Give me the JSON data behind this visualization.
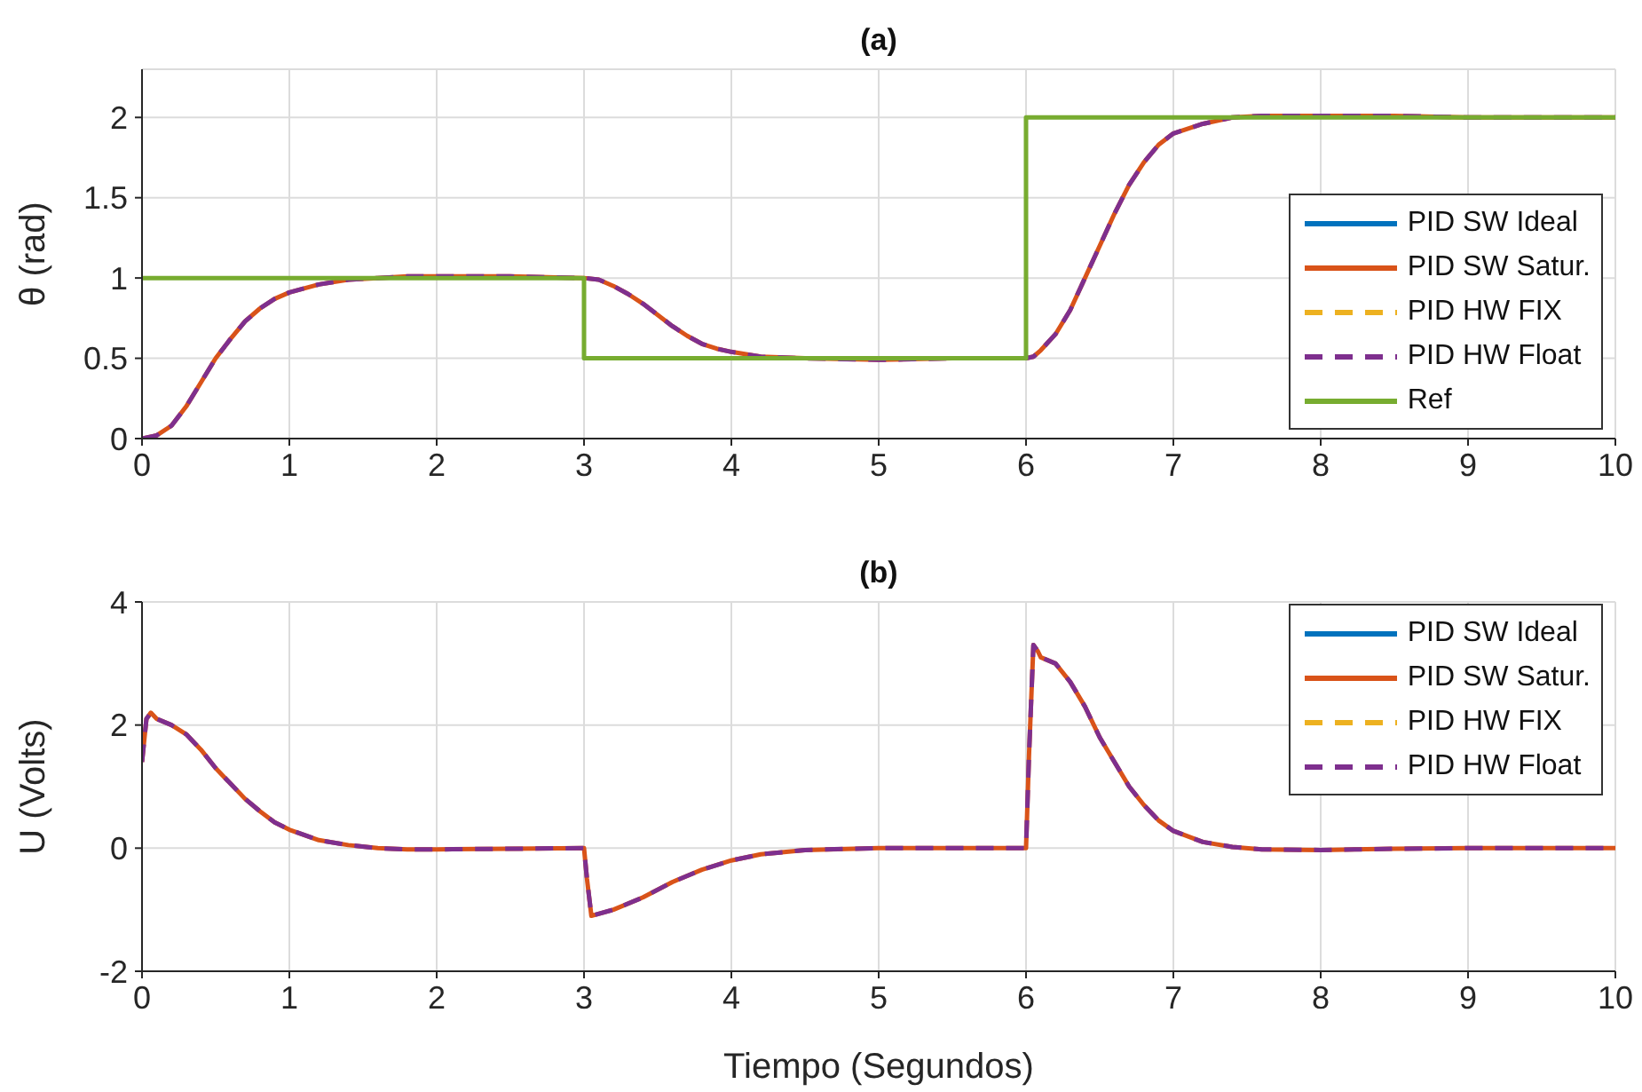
{
  "chart_data": [
    {
      "type": "line",
      "title": "(a)",
      "ylabel": "θ (rad)",
      "xlim": [
        0,
        10
      ],
      "xticks": [
        0,
        1,
        2,
        3,
        4,
        5,
        6,
        7,
        8,
        9,
        10
      ],
      "ylim": [
        0,
        2.3
      ],
      "yticks": [
        0,
        0.5,
        1,
        1.5,
        2
      ],
      "grid": true,
      "legend": "bottom right",
      "tick_labels": true,
      "x": [
        0,
        0.1,
        0.2,
        0.3,
        0.4,
        0.5,
        0.6,
        0.7,
        0.8,
        0.9,
        1.0,
        1.2,
        1.4,
        1.6,
        1.8,
        2.0,
        2.5,
        3.0,
        3.1,
        3.2,
        3.3,
        3.4,
        3.5,
        3.6,
        3.7,
        3.8,
        3.9,
        4.0,
        4.2,
        4.5,
        5.0,
        5.5,
        6.0,
        6.05,
        6.1,
        6.2,
        6.3,
        6.4,
        6.5,
        6.6,
        6.7,
        6.8,
        6.9,
        7.0,
        7.2,
        7.4,
        7.6,
        8.0,
        8.5,
        9.0,
        10.0
      ],
      "series": [
        {
          "name": "PID SW Ideal",
          "color": "#0072bd",
          "line_style": "solid",
          "values": [
            null,
            null,
            null,
            null,
            null,
            null,
            null,
            null,
            null,
            null,
            null,
            null,
            null,
            null,
            null,
            null,
            null,
            null,
            null,
            null,
            null,
            null,
            null,
            null,
            null,
            null,
            null,
            null,
            null,
            null,
            null,
            null,
            null,
            null,
            null,
            null,
            null,
            null,
            null,
            null,
            null,
            null,
            null,
            null,
            null,
            null,
            null,
            null,
            null,
            null,
            null
          ]
        },
        {
          "name": "PID SW Satur.",
          "color": "#d95319",
          "line_style": "solid",
          "values": [
            0,
            0.02,
            0.08,
            0.2,
            0.35,
            0.5,
            0.62,
            0.73,
            0.81,
            0.87,
            0.91,
            0.96,
            0.99,
            1.0,
            1.01,
            1.01,
            1.01,
            1.0,
            0.99,
            0.95,
            0.9,
            0.84,
            0.77,
            0.7,
            0.64,
            0.59,
            0.56,
            0.54,
            0.51,
            0.5,
            0.49,
            0.5,
            0.5,
            0.51,
            0.55,
            0.65,
            0.8,
            1.0,
            1.2,
            1.4,
            1.58,
            1.72,
            1.83,
            1.9,
            1.96,
            2.0,
            2.01,
            2.01,
            2.01,
            2.0,
            2.0
          ]
        },
        {
          "name": "PID HW FIX",
          "color": "#edb120",
          "line_style": "dashed",
          "values": [
            null,
            null,
            null,
            null,
            null,
            null,
            null,
            null,
            null,
            null,
            null,
            null,
            null,
            null,
            null,
            null,
            null,
            null,
            null,
            null,
            null,
            null,
            null,
            null,
            null,
            null,
            null,
            null,
            null,
            null,
            null,
            null,
            null,
            null,
            null,
            null,
            null,
            null,
            null,
            null,
            null,
            null,
            null,
            null,
            null,
            null,
            null,
            null,
            null,
            null,
            null
          ]
        },
        {
          "name": "PID HW Float",
          "color": "#7e2f8e",
          "line_style": "dashed",
          "values": [
            0,
            0.02,
            0.08,
            0.2,
            0.35,
            0.5,
            0.62,
            0.73,
            0.81,
            0.87,
            0.91,
            0.96,
            0.99,
            1.0,
            1.01,
            1.01,
            1.01,
            1.0,
            0.99,
            0.95,
            0.9,
            0.84,
            0.77,
            0.7,
            0.64,
            0.59,
            0.56,
            0.54,
            0.51,
            0.5,
            0.49,
            0.5,
            0.5,
            0.51,
            0.55,
            0.65,
            0.8,
            1.0,
            1.2,
            1.4,
            1.58,
            1.72,
            1.83,
            1.9,
            1.96,
            2.0,
            2.01,
            2.01,
            2.01,
            2.0,
            2.0
          ]
        },
        {
          "name": "Ref",
          "color": "#77ac30",
          "line_style": "solid",
          "x": [
            0,
            3,
            3,
            6,
            6,
            10
          ],
          "values": [
            1,
            1,
            0.5,
            0.5,
            2,
            2
          ]
        }
      ]
    },
    {
      "type": "line",
      "title": "(b)",
      "xlabel": "Tiempo (Segundos)",
      "ylabel": "U (Volts)",
      "xlim": [
        0,
        10
      ],
      "xticks": [
        0,
        1,
        2,
        3,
        4,
        5,
        6,
        7,
        8,
        9,
        10
      ],
      "ylim": [
        -2,
        4
      ],
      "yticks": [
        -2,
        0,
        2,
        4
      ],
      "grid": true,
      "legend": "top right",
      "tick_labels": true,
      "x": [
        0,
        0.03,
        0.06,
        0.1,
        0.2,
        0.3,
        0.4,
        0.5,
        0.6,
        0.7,
        0.8,
        0.9,
        1.0,
        1.2,
        1.4,
        1.6,
        1.8,
        2.0,
        2.5,
        3.0,
        3.02,
        3.05,
        3.2,
        3.4,
        3.6,
        3.8,
        4.0,
        4.2,
        4.5,
        5.0,
        6.0,
        6.02,
        6.05,
        6.08,
        6.1,
        6.2,
        6.3,
        6.4,
        6.5,
        6.6,
        6.7,
        6.8,
        6.9,
        7.0,
        7.2,
        7.4,
        7.6,
        8.0,
        8.5,
        9.0,
        10.0
      ],
      "series": [
        {
          "name": "PID SW Ideal",
          "color": "#0072bd",
          "line_style": "solid",
          "values": [
            null,
            null,
            null,
            null,
            null,
            null,
            null,
            null,
            null,
            null,
            null,
            null,
            null,
            null,
            null,
            null,
            null,
            null,
            null,
            null,
            null,
            null,
            null,
            null,
            null,
            null,
            null,
            null,
            null,
            null,
            null,
            null,
            null,
            null,
            null,
            null,
            null,
            null,
            null,
            null,
            null,
            null,
            null,
            null,
            null,
            null,
            null,
            null,
            null,
            null,
            null
          ]
        },
        {
          "name": "PID SW Satur.",
          "color": "#d95319",
          "line_style": "solid",
          "values": [
            1.4,
            2.1,
            2.2,
            2.1,
            2.0,
            1.85,
            1.6,
            1.3,
            1.05,
            0.8,
            0.6,
            0.42,
            0.3,
            0.13,
            0.05,
            0,
            -0.02,
            -0.02,
            -0.01,
            0,
            -0.5,
            -1.1,
            -1.0,
            -0.8,
            -0.55,
            -0.35,
            -0.2,
            -0.1,
            -0.03,
            0,
            0,
            1.5,
            3.3,
            3.2,
            3.1,
            3.0,
            2.7,
            2.3,
            1.8,
            1.4,
            1.0,
            0.7,
            0.45,
            0.28,
            0.1,
            0.02,
            -0.02,
            -0.03,
            -0.01,
            0,
            0
          ]
        },
        {
          "name": "PID HW FIX",
          "color": "#edb120",
          "line_style": "dashed",
          "values": [
            null,
            null,
            null,
            null,
            null,
            null,
            null,
            null,
            null,
            null,
            null,
            null,
            null,
            null,
            null,
            null,
            null,
            null,
            null,
            null,
            null,
            null,
            null,
            null,
            null,
            null,
            null,
            null,
            null,
            null,
            null,
            null,
            null,
            null,
            null,
            null,
            null,
            null,
            null,
            null,
            null,
            null,
            null,
            null,
            null,
            null,
            null,
            null,
            null,
            null,
            null
          ]
        },
        {
          "name": "PID HW Float",
          "color": "#7e2f8e",
          "line_style": "dashed",
          "values": [
            1.4,
            2.1,
            2.2,
            2.1,
            2.0,
            1.85,
            1.6,
            1.3,
            1.05,
            0.8,
            0.6,
            0.42,
            0.3,
            0.13,
            0.05,
            0,
            -0.02,
            -0.02,
            -0.01,
            0,
            -0.5,
            -1.1,
            -1.0,
            -0.8,
            -0.55,
            -0.35,
            -0.2,
            -0.1,
            -0.03,
            0,
            0,
            1.5,
            3.3,
            3.2,
            3.1,
            3.0,
            2.7,
            2.3,
            1.8,
            1.4,
            1.0,
            0.7,
            0.45,
            0.28,
            0.1,
            0.02,
            -0.02,
            -0.03,
            -0.01,
            0,
            0
          ]
        }
      ]
    }
  ]
}
